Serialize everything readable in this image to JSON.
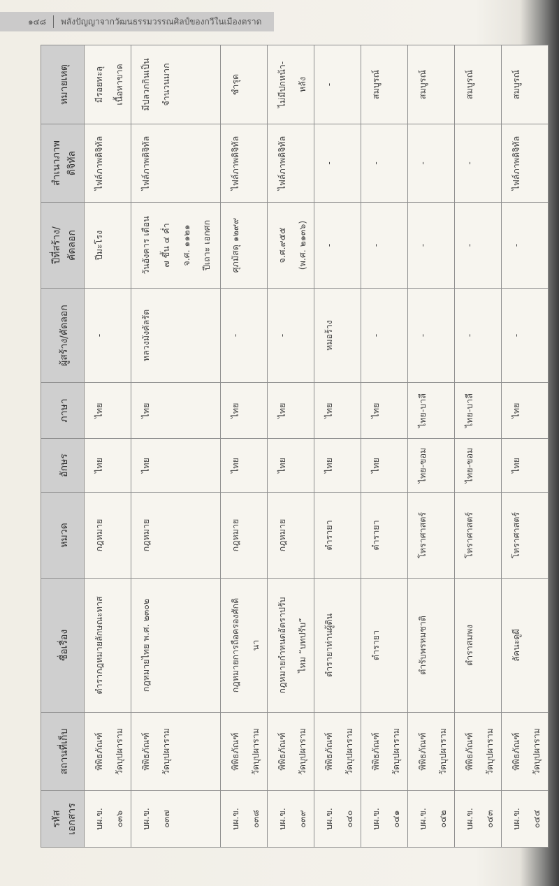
{
  "running_head": {
    "page_number": "๑๔๘",
    "book_title": "พลังปัญญาจากวัฒนธรรมวรรณศิลป์ของกวีในเมืองตราด"
  },
  "table": {
    "headers": [
      "รหัส\nเอกสาร",
      "สถานที่เก็บ",
      "ชื่อเรื่อง",
      "หมวด",
      "อักษร",
      "ภาษา",
      "ผู้สร้าง/คัดลอก",
      "ปีที่สร้าง/\nคัดลอก",
      "สำเนาภาพ\nดิจิทัล",
      "หมายเหตุ"
    ],
    "rows": [
      [
        "บผ.ข.\n๐๓๖",
        "พิพิธภัณฑ์\nวัดบุปผาราม",
        "ตำรากฎหมายลักษณะทาส",
        "กฎหมาย",
        "ไทย",
        "ไทย",
        "-",
        "ปีมะโรง",
        "ไฟล์ภาพดิจิทัล",
        "มีรอยทะลุ\nเนื้อหาขาด"
      ],
      [
        "บผ.ข.\n๐๓๗",
        "พิพิธภัณฑ์\nวัดบุปผาราม",
        "กฎหมายไทย พ.ศ. ๒๓๐๒",
        "กฎหมาย",
        "ไทย",
        "ไทย",
        "หลวงมังคัลรัต",
        "วันอังคาร เดือน\n๗ ขึ้น ๔ ค่ำ\nจ.ศ. ๑๑๒๑\nปีเถาะ เอกศก",
        "ไฟล์ภาพดิจิทัล",
        "มีปลวกกินเป็น\nจำนวนมาก"
      ],
      [
        "บผ.ข.\n๐๓๘",
        "พิพิธภัณฑ์\nวัดบุปผาราม",
        "กฎหมายการถือครองศักดิ\nนา",
        "กฎหมาย",
        "ไทย",
        "ไทย",
        "-",
        "ศุภมัสดุ ๑๒๙๙",
        "ไฟล์ภาพดิจิทัล",
        "ชำรุด"
      ],
      [
        "บผ.ข.\n๐๓๙",
        "พิพิธภัณฑ์\nวัดบุปผาราม",
        "กฎหมายกำหนดอัตราปรับ\nไหม “บทปรับ”",
        "กฎหมาย",
        "ไทย",
        "ไทย",
        "-",
        "จ.ศ.๙๕๕\n(พ.ศ. ๒๑๓๖)",
        "ไฟล์ภาพดิจิทัล",
        "ไม่มีปกหน้า-\nหลัง"
      ],
      [
        "บผ.ข.\n๐๔๐",
        "พิพิธภัณฑ์\nวัดบุปผาราม",
        "ตำรายาท่านผู้ดิน",
        "ตำรายา",
        "ไทย",
        "ไทย",
        "หมอร้าง",
        "-",
        "-",
        "-"
      ],
      [
        "บผ.ข.\n๐๔๑",
        "พิพิธภัณฑ์\nวัดบุปผาราม",
        "ตำรายา",
        "ตำรายา",
        "ไทย",
        "ไทย",
        "-",
        "-",
        "-",
        "สมบูรณ์"
      ],
      [
        "บผ.ข.\n๐๔๒",
        "พิพิธภัณฑ์\nวัดบุปผาราม",
        "ตำรับพรหมชาติ",
        "โหราศาสตร์",
        "ไทย-ขอม",
        "ไทย-บาลี",
        "-",
        "-",
        "-",
        "สมบูรณ์"
      ],
      [
        "บผ.ข.\n๐๔๓",
        "พิพิธภัณฑ์\nวัดบุปผาราม",
        "ตำราสมพง",
        "โหราศาสตร์",
        "ไทย-ขอม",
        "ไทย-บาลี",
        "-",
        "-",
        "-",
        "สมบูรณ์"
      ],
      [
        "บผ.ข.\n๐๔๔",
        "พิพิธภัณฑ์\nวัดบุปผาราม",
        "ลัคนะดูผี",
        "โหราศาสตร์",
        "ไทย",
        "ไทย",
        "-",
        "-",
        "ไฟล์ภาพดิจิทัล",
        "สมบูรณ์"
      ]
    ]
  }
}
